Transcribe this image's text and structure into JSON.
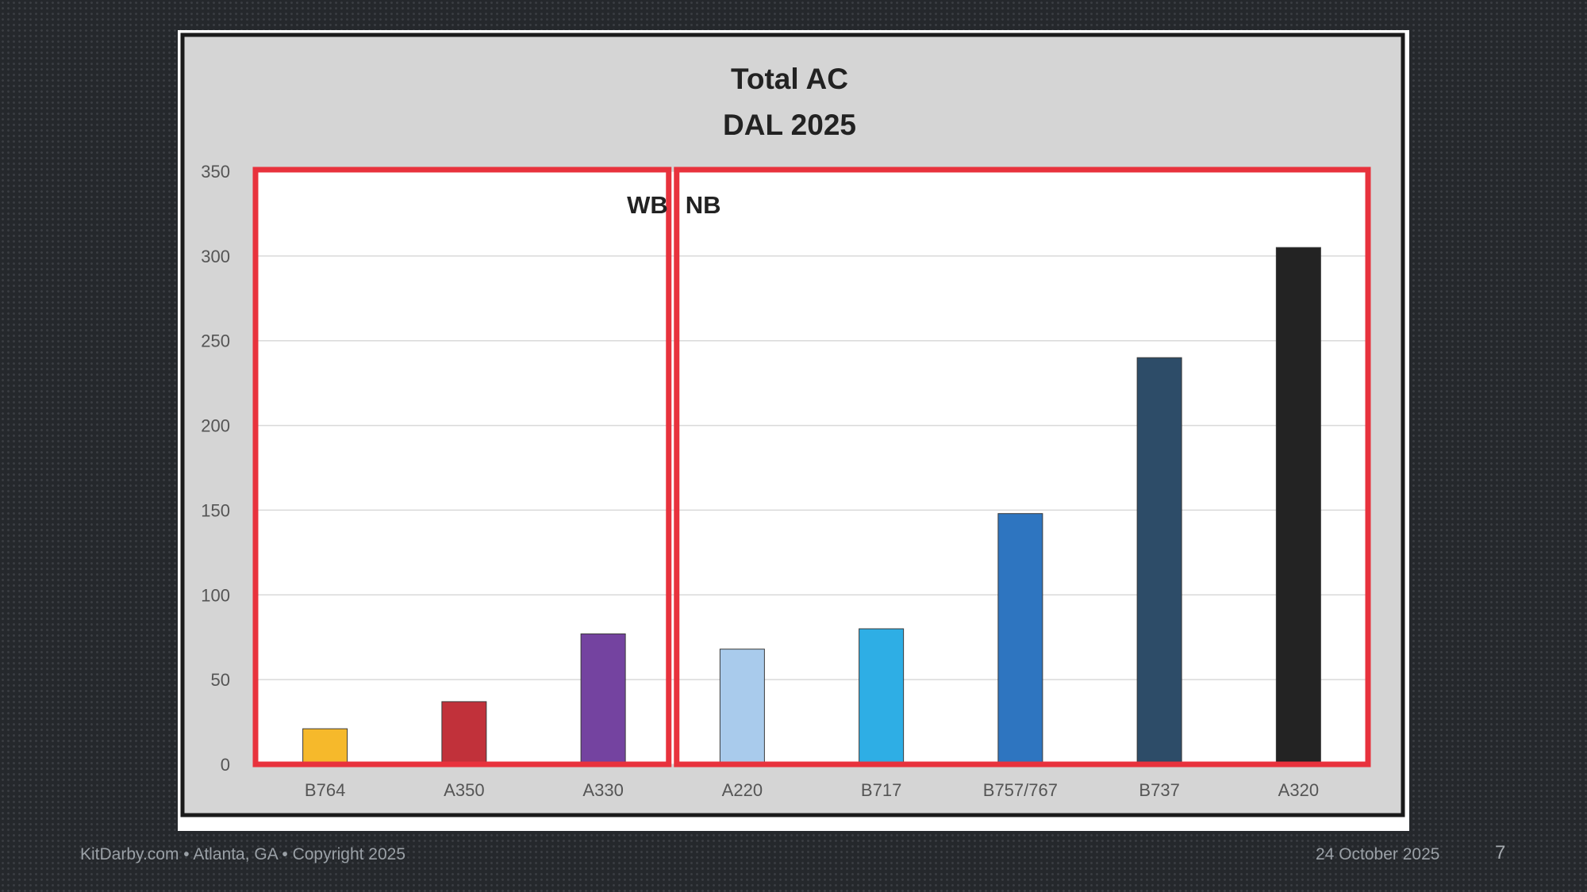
{
  "chart_data": {
    "type": "bar",
    "title": "Total AC",
    "subtitle": "DAL 2025",
    "categories": [
      "B764",
      "A350",
      "A330",
      "A220",
      "B717",
      "B757/767",
      "B737",
      "A320"
    ],
    "values": [
      21,
      37,
      77,
      68,
      80,
      148,
      240,
      305
    ],
    "colors": [
      "#f6b92b",
      "#c1313a",
      "#7443a0",
      "#a9cbec",
      "#2eaee5",
      "#2e75c0",
      "#2d4c68",
      "#232323"
    ],
    "ylim": [
      0,
      350
    ],
    "yticks": [
      0,
      50,
      100,
      150,
      200,
      250,
      300,
      350
    ],
    "grid": true,
    "xlabel": "",
    "ylabel": "",
    "group_labels": [
      "WB",
      "NB"
    ],
    "group_box_color": "#e8323d",
    "groups": [
      {
        "label": "WB",
        "categories": [
          "B764",
          "A350",
          "A330"
        ]
      },
      {
        "label": "NB",
        "categories": [
          "A220",
          "B717",
          "B757/767",
          "B737",
          "A320"
        ]
      }
    ]
  },
  "footer": {
    "left": "KitDarby.com • Atlanta, GA • Copyright 2025",
    "date": "24 October 2025",
    "page": "7"
  }
}
